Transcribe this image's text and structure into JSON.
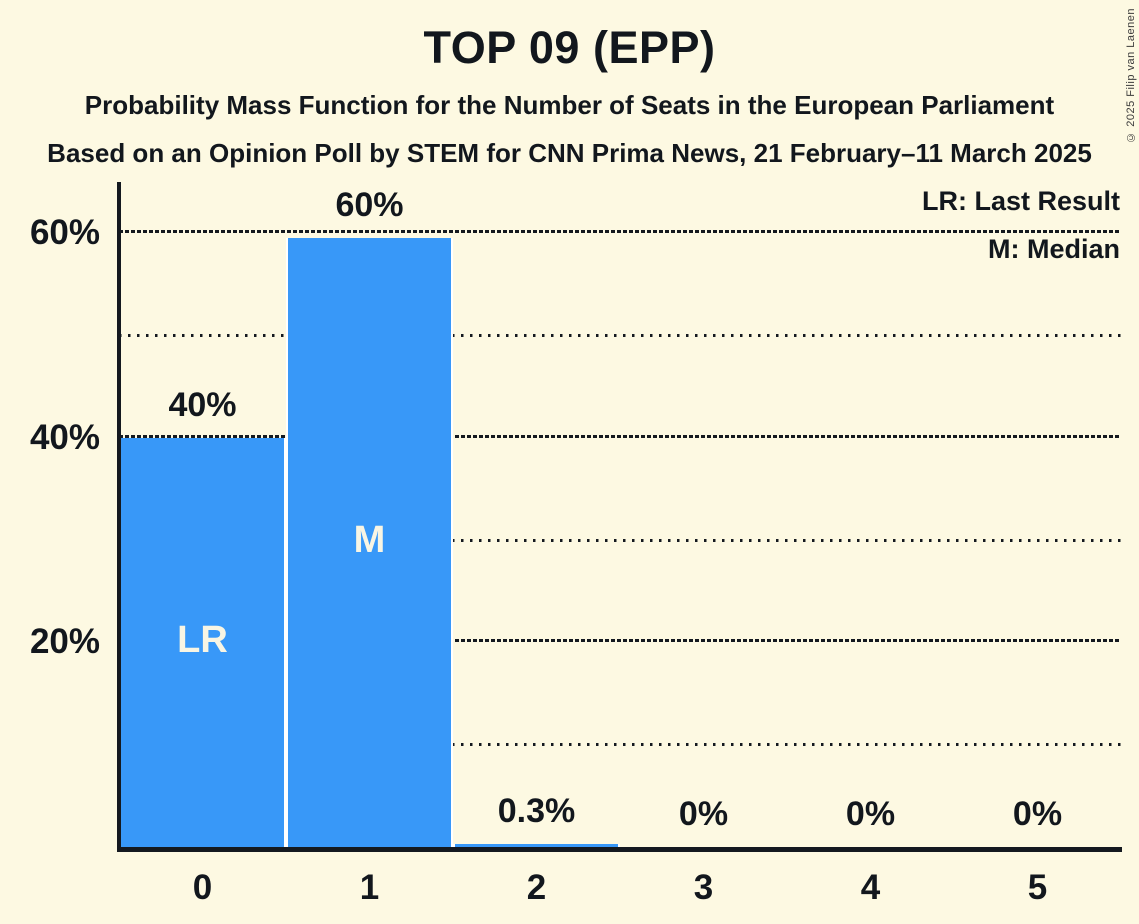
{
  "page": {
    "background_color": "#FDF9E2",
    "ink_color": "#12171D"
  },
  "header": {
    "title": "TOP 09 (EPP)",
    "subtitle1": "Probability Mass Function for the Number of Seats in the European Parliament",
    "subtitle2": "Based on an Opinion Poll by STEM for CNN Prima News, 21 February–11 March 2025",
    "copyright": "© 2025 Filip van Laenen"
  },
  "legend": {
    "lr_label": "LR: Last Result",
    "m_label": "M: Median",
    "position": "top-right"
  },
  "chart_data": {
    "type": "bar",
    "title": "TOP 09 (EPP)",
    "categories": [
      "0",
      "1",
      "2",
      "3",
      "4",
      "5"
    ],
    "values": [
      40,
      60,
      0.3,
      0,
      0,
      0
    ],
    "value_labels": [
      "40%",
      "60%",
      "0.3%",
      "0%",
      "0%",
      "0%"
    ],
    "bar_annotations": [
      "LR",
      "M",
      "",
      "",
      "",
      ""
    ],
    "bar_render_heights_pct": [
      40,
      59.5,
      0.3,
      0,
      0,
      0
    ],
    "bar_color": "#3898F8",
    "bar_label_color": "#F8F5E4",
    "ylim": [
      0,
      65
    ],
    "y_major_gridlines_pct": [
      20,
      40,
      60
    ],
    "y_minor_gridlines_pct": [
      10,
      30,
      50
    ],
    "y_tick_labels": [
      {
        "pct": 20,
        "label": "20%"
      },
      {
        "pct": 40,
        "label": "40%"
      },
      {
        "pct": 60,
        "label": "60%"
      }
    ],
    "grid": true,
    "legend_position": "top-right"
  }
}
